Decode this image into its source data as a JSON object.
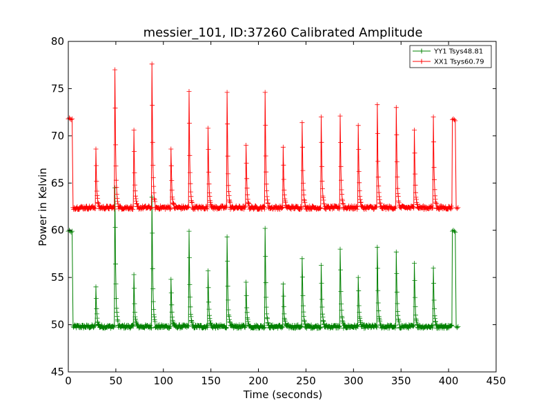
{
  "chart_data": {
    "type": "line",
    "title": "messier_101, ID:37260 Calibrated Amplitude",
    "xlabel": "Time (seconds)",
    "ylabel": "Power in Kelvin",
    "xlim": [
      0,
      450
    ],
    "ylim": [
      45,
      80
    ],
    "xticks": [
      "0",
      "50",
      "100",
      "150",
      "200",
      "250",
      "300",
      "350",
      "400",
      "450"
    ],
    "yticks": [
      "45",
      "50",
      "55",
      "60",
      "65",
      "70",
      "75",
      "80"
    ],
    "grid": false,
    "legend_position": "top-right",
    "series": [
      {
        "name": "YY1 Tsys48.81",
        "color": "#008000",
        "baseline": 49.8,
        "start": {
          "x": [
            0,
            1,
            2,
            3,
            4
          ],
          "y": [
            59.9,
            60.0,
            59.9,
            59.8,
            59.9
          ]
        },
        "end": {
          "x": [
            404,
            405,
            406,
            407,
            408,
            409,
            410
          ],
          "y": [
            59.9,
            60.0,
            59.9,
            59.8,
            49.8,
            49.7,
            49.8
          ]
        },
        "peaks": [
          {
            "x": 29,
            "y": 54.0
          },
          {
            "x": 49,
            "y": 64.5
          },
          {
            "x": 69,
            "y": 55.3
          },
          {
            "x": 88,
            "y": 63.5
          },
          {
            "x": 108,
            "y": 54.8
          },
          {
            "x": 127,
            "y": 59.9
          },
          {
            "x": 147,
            "y": 55.7
          },
          {
            "x": 167,
            "y": 59.3
          },
          {
            "x": 187,
            "y": 54.5
          },
          {
            "x": 207,
            "y": 60.2
          },
          {
            "x": 226,
            "y": 54.3
          },
          {
            "x": 246,
            "y": 57.0
          },
          {
            "x": 266,
            "y": 56.3
          },
          {
            "x": 286,
            "y": 58.0
          },
          {
            "x": 305,
            "y": 55.0
          },
          {
            "x": 325,
            "y": 58.2
          },
          {
            "x": 345,
            "y": 57.7
          },
          {
            "x": 364,
            "y": 56.5
          },
          {
            "x": 384,
            "y": 56.0
          }
        ]
      },
      {
        "name": "XX1 Tsys60.79",
        "color": "#ff0000",
        "baseline": 62.4,
        "start": {
          "x": [
            0,
            1,
            2,
            3,
            4
          ],
          "y": [
            71.8,
            71.9,
            71.8,
            71.7,
            71.8
          ]
        },
        "end": {
          "x": [
            404,
            405,
            406,
            407,
            408,
            409,
            410
          ],
          "y": [
            71.7,
            71.8,
            71.7,
            71.6,
            62.4,
            62.3,
            62.4
          ]
        },
        "peaks": [
          {
            "x": 29,
            "y": 68.6
          },
          {
            "x": 49,
            "y": 77.0
          },
          {
            "x": 69,
            "y": 70.6
          },
          {
            "x": 88,
            "y": 77.6
          },
          {
            "x": 108,
            "y": 68.6
          },
          {
            "x": 127,
            "y": 74.7
          },
          {
            "x": 147,
            "y": 70.8
          },
          {
            "x": 167,
            "y": 74.6
          },
          {
            "x": 187,
            "y": 69.0
          },
          {
            "x": 207,
            "y": 74.6
          },
          {
            "x": 226,
            "y": 68.8
          },
          {
            "x": 246,
            "y": 71.4
          },
          {
            "x": 266,
            "y": 72.0
          },
          {
            "x": 286,
            "y": 72.1
          },
          {
            "x": 305,
            "y": 71.1
          },
          {
            "x": 325,
            "y": 73.3
          },
          {
            "x": 345,
            "y": 73.0
          },
          {
            "x": 364,
            "y": 70.6
          },
          {
            "x": 384,
            "y": 72.0
          }
        ]
      }
    ]
  }
}
